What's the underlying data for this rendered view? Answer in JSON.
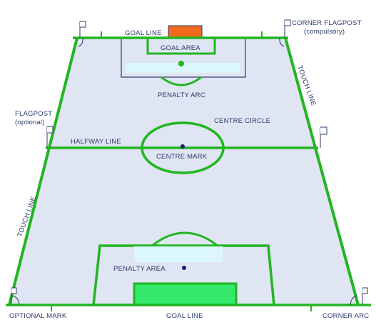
{
  "colors": {
    "field": "#dfe5f2",
    "line": "#22b522",
    "goal_top": "#f26a1b",
    "goal_bottom": "#33e86a",
    "band": "#dcf7fb",
    "label": "#2b3a6b",
    "flag": "#2b3a6b",
    "mark": "#15206b"
  },
  "labels": {
    "goal_line_top": "GOAL LINE",
    "goal_area": "GOAL AREA",
    "corner_flagpost_line1": "CORNER FLAGPOST",
    "corner_flagpost_line2": "(compulsory)",
    "touch_line_right": "TOUCH LINE",
    "penalty_arc": "PENALTY ARC",
    "flagpost_line1": "FLAGPOST",
    "flagpost_line2": "(optional)",
    "centre_circle": "CENTRE CIRCLE",
    "halfway_line": "HALFWAY LINE",
    "centre_mark": "CENTRE MARK",
    "touch_line_left": "TOUCH LINE",
    "penalty_area": "PENALTY AREA",
    "optional_mark": "OPTIONAL MARK",
    "goal_line_bottom": "GOAL LINE",
    "corner_arc": "CORNER ARC"
  },
  "icons": [
    "corner-flag-icon",
    "optional-flag-icon"
  ]
}
